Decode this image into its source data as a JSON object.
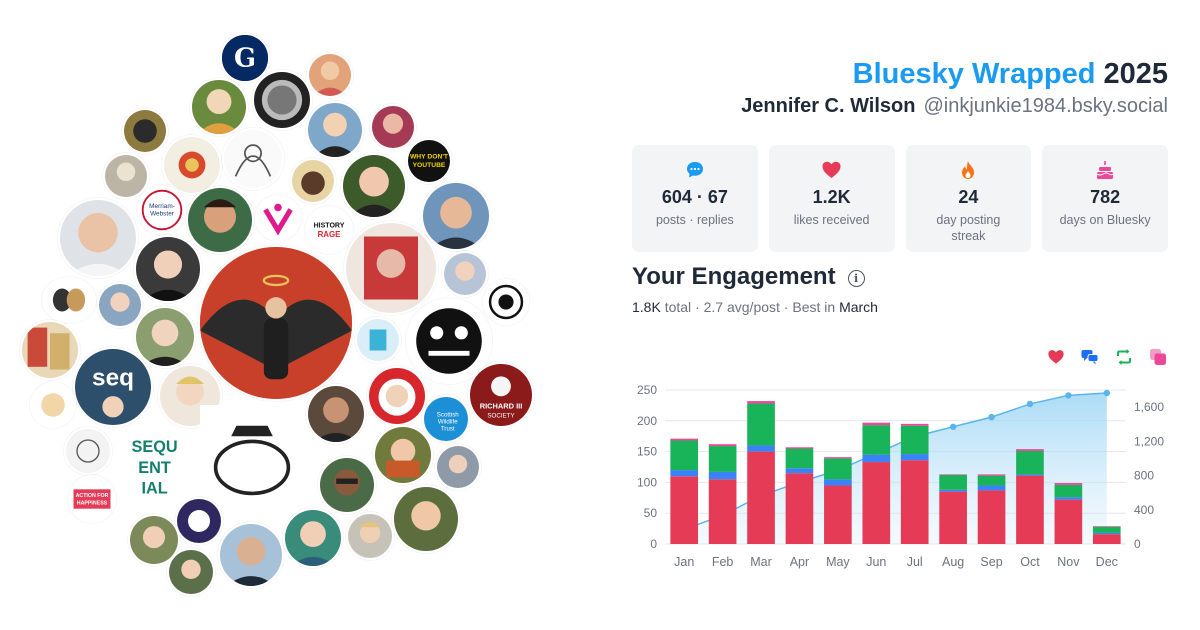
{
  "header": {
    "brand": "Bluesky Wrapped",
    "year": "2025",
    "display_name": "Jennifer C. Wilson",
    "handle": "@inkjunkie1984.bsky.social"
  },
  "stats": [
    {
      "icon": "speech-bubble-icon",
      "value": "604 · 67",
      "label": "posts · replies",
      "color": "#1b9bf0"
    },
    {
      "icon": "heart-icon",
      "value": "1.2K",
      "label": "likes received",
      "color": "#e63b56"
    },
    {
      "icon": "flame-icon",
      "value": "24",
      "label": "day posting streak",
      "color": "#f97316"
    },
    {
      "icon": "cake-icon",
      "value": "782",
      "label": "days on Bluesky",
      "color": "#ec4899"
    }
  ],
  "engagement": {
    "title": "Your Engagement",
    "total": "1.8K",
    "total_label": "total",
    "avg": "2.7 avg/post",
    "best_prefix": "Best in",
    "best_month": "March",
    "legend_icons": [
      {
        "name": "heart-icon",
        "color": "#e63b56"
      },
      {
        "name": "reply-icon",
        "color": "#1d6ff2"
      },
      {
        "name": "repost-icon",
        "color": "#19b35a"
      },
      {
        "name": "quote-icon",
        "color": "#ec4899"
      }
    ]
  },
  "chart_data": {
    "type": "bar",
    "stacked": true,
    "categories": [
      "Jan",
      "Feb",
      "Mar",
      "Apr",
      "May",
      "Jun",
      "Jul",
      "Aug",
      "Sep",
      "Oct",
      "Nov",
      "Dec"
    ],
    "series": [
      {
        "color": "#e63b56",
        "values": [
          110,
          105,
          150,
          115,
          95,
          133,
          136,
          85,
          87,
          111,
          72,
          16
        ]
      },
      {
        "color": "#3b82f6",
        "values": [
          10,
          12,
          10,
          8,
          10,
          12,
          10,
          3,
          8,
          2,
          4,
          2
        ]
      },
      {
        "color": "#19b35a",
        "values": [
          48,
          42,
          68,
          32,
          34,
          48,
          46,
          24,
          16,
          38,
          20,
          10
        ]
      },
      {
        "color": "#ec4899",
        "values": [
          3,
          3,
          4,
          2,
          2,
          4,
          3,
          1,
          2,
          3,
          3,
          1
        ]
      }
    ],
    "cumulative": {
      "type": "area",
      "color": "#5ab6ea",
      "values": [
        170,
        335,
        565,
        722,
        862,
        1060,
        1255,
        1370,
        1483,
        1637,
        1737,
        1765
      ]
    },
    "ylim": [
      0,
      250
    ],
    "yticks": [
      0,
      50,
      100,
      150,
      200,
      250
    ],
    "y2lim": [
      0,
      1800
    ],
    "y2ticks": [
      0,
      400,
      800,
      1200,
      1600
    ],
    "y2tick_labels": [
      "0",
      "400",
      "800",
      "1,200",
      "1,600"
    ],
    "grid": true
  },
  "avatars": [
    {
      "name": "guardian-logo-avatar",
      "text": "G",
      "bg": "#052962",
      "fg": "#ffffff"
    },
    {
      "name": "merriam-webster-avatar",
      "text": "Merriam-Webster",
      "bg": "#ffffff",
      "fg": "#1e3a6d"
    },
    {
      "name": "history-rage-avatar",
      "text": "HISTORY RAGE",
      "bg": "#ffffff",
      "fg": "#111111"
    },
    {
      "name": "why-dont-you-tube-avatar",
      "text": "WHY DON'T YOUTUBE",
      "bg": "#111111",
      "fg": "#f2d400"
    },
    {
      "name": "scottish-wildlife-trust-avatar",
      "text": "Scottish Wildlife Trust",
      "bg": "#1c8fd6",
      "fg": "#ffffff"
    },
    {
      "name": "richard-iii-society-avatar",
      "text": "RICHARD III SOCIETY",
      "bg": "#8b1a1a",
      "fg": "#ffffff"
    },
    {
      "name": "sequential-scotland-avatar",
      "text": "SEQU ENT IAL",
      "bg": "#ffffff",
      "fg": "#14806c"
    },
    {
      "name": "action-for-happiness-avatar",
      "text": "ACTION FOR HAPPINESS",
      "bg": "#e63b56",
      "fg": "#ffffff"
    },
    {
      "name": "seq-comic-avatar",
      "text": "seq",
      "bg": "#2d4f6b",
      "fg": "#ffffff"
    }
  ]
}
